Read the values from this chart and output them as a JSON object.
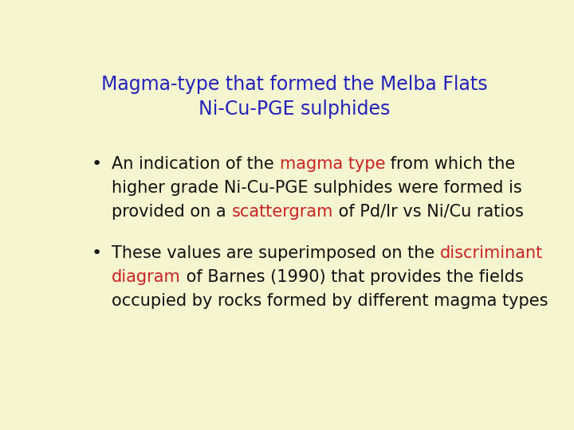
{
  "background_color": "#f5f5d0",
  "title_line1": "Magma-type that formed the Melba Flats",
  "title_line2": "Ni-Cu-PGE sulphides",
  "title_color": "#2222bb",
  "title_fontsize": 17,
  "bullet_fontsize": 15,
  "text_color": "#111111",
  "red_color": "#cc2222",
  "bullet1_lines": [
    [
      {
        "text": "An indication of the ",
        "color": "#111111"
      },
      {
        "text": "magma type",
        "color": "#cc2222"
      },
      {
        "text": " from which the",
        "color": "#111111"
      }
    ],
    [
      {
        "text": "higher grade Ni-Cu-PGE sulphides were formed is",
        "color": "#111111"
      }
    ],
    [
      {
        "text": "provided on a ",
        "color": "#111111"
      },
      {
        "text": "scattergram",
        "color": "#cc2222"
      },
      {
        "text": " of Pd/Ir vs Ni/Cu ratios",
        "color": "#111111"
      }
    ]
  ],
  "bullet2_lines": [
    [
      {
        "text": "These values are superimposed on the ",
        "color": "#111111"
      },
      {
        "text": "discriminant",
        "color": "#cc2222"
      }
    ],
    [
      {
        "text": "diagram",
        "color": "#cc2222"
      },
      {
        "text": " of Barnes (1990) that provides the fields",
        "color": "#111111"
      }
    ],
    [
      {
        "text": "occupied by rocks formed by different magma types",
        "color": "#111111"
      }
    ]
  ]
}
